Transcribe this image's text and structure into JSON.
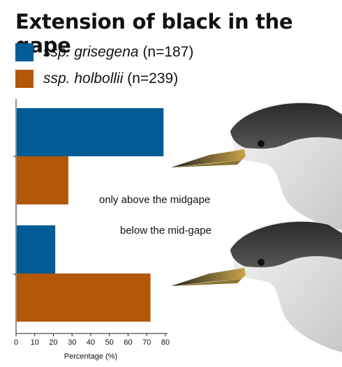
{
  "colors": {
    "grisegena": "#005b96",
    "holbollii": "#b35806"
  },
  "legend": [
    {
      "name": "ssp. grisegena",
      "n": "(n=187)",
      "color": "#005b96"
    },
    {
      "name": "ssp. holbollii",
      "n": "(n=239)",
      "color": "#b35806"
    }
  ],
  "icons": [
    "grebe-head-illustration-upper",
    "grebe-head-illustration-lower"
  ],
  "chart_data": {
    "type": "bar",
    "orientation": "horizontal",
    "title": "Extension of black in the gape",
    "categories": [
      "only above the midgape",
      "below the mid-gape"
    ],
    "series": [
      {
        "name": "ssp. grisegena (n=187)",
        "values": [
          79,
          21
        ]
      },
      {
        "name": "ssp. holbollii (n=239)",
        "values": [
          28,
          72
        ]
      }
    ],
    "xlabel": "Percentage (%)",
    "ylabel": "",
    "xlim": [
      0,
      80
    ],
    "xticks": [
      0,
      10,
      20,
      30,
      40,
      50,
      60,
      70,
      80
    ],
    "grid": false,
    "legend_position": "top-left"
  }
}
